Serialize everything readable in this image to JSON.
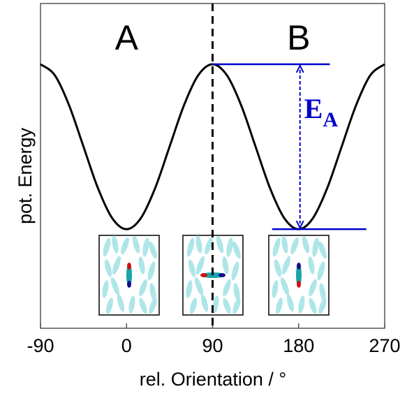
{
  "chart_data": {
    "type": "line",
    "xlabel": "rel. Orientation / °",
    "ylabel": "pot. Energy",
    "x": [
      -90,
      -75,
      -60,
      -45,
      -30,
      -15,
      0,
      15,
      30,
      45,
      60,
      75,
      90,
      105,
      120,
      135,
      150,
      165,
      180,
      195,
      210,
      225,
      240,
      255,
      270
    ],
    "series": [
      {
        "color": "#000000",
        "values": [
          0.813,
          0.779,
          0.686,
          0.559,
          0.432,
          0.339,
          0.305,
          0.339,
          0.432,
          0.559,
          0.686,
          0.779,
          0.813,
          0.779,
          0.686,
          0.559,
          0.432,
          0.339,
          0.305,
          0.339,
          0.432,
          0.559,
          0.686,
          0.779,
          0.813
        ]
      }
    ],
    "xlim": [
      -90,
      270
    ],
    "xticks": [
      -90,
      0,
      90,
      180,
      270
    ],
    "ylim": [
      0,
      1
    ],
    "vline": 90,
    "annotations": {
      "left": "A",
      "right": "B",
      "barrier": "E",
      "barrier_sub": "A"
    },
    "annotation_color": "#0000cc"
  }
}
